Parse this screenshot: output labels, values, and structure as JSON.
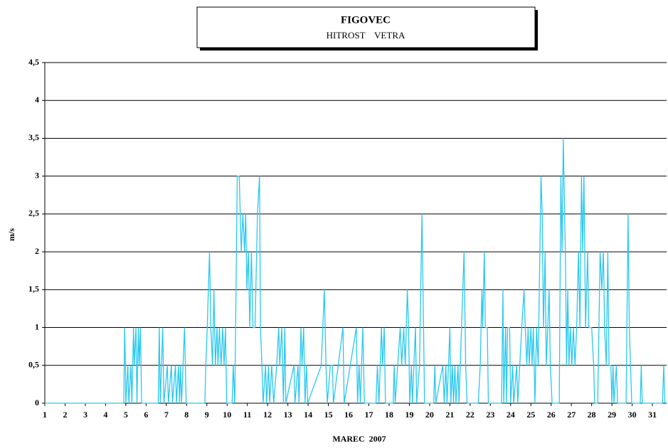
{
  "chart_data": {
    "type": "line",
    "title": "FIGOVEC",
    "subtitle": "HITROST    VETRA",
    "xlabel": "MAREC  2007",
    "ylabel": "m/s",
    "grid": true,
    "xlim": [
      1,
      31.7
    ],
    "ylim": [
      0,
      4.5
    ],
    "xticks": [
      1,
      2,
      3,
      4,
      5,
      6,
      7,
      8,
      9,
      10,
      11,
      12,
      13,
      14,
      15,
      16,
      17,
      18,
      19,
      20,
      21,
      22,
      23,
      24,
      25,
      26,
      27,
      28,
      29,
      30,
      31
    ],
    "yticks": [
      0,
      {
        "value": 0.5,
        "label": "0,5"
      },
      1,
      {
        "value": 1.5,
        "label": "1,5"
      },
      2,
      {
        "value": 2.5,
        "label": "2,5"
      },
      3,
      {
        "value": 3.5,
        "label": "3,5"
      },
      4,
      {
        "value": 4.5,
        "label": "4,5"
      }
    ],
    "series": [
      {
        "color": "#29c8f0",
        "x": [
          1,
          4.9,
          4.94,
          4.98,
          5.0,
          5.1,
          5.15,
          5.25,
          5.3,
          5.38,
          5.42,
          5.5,
          5.55,
          5.62,
          5.66,
          5.72,
          5.78,
          6.6,
          6.65,
          6.7,
          6.82,
          6.88,
          7.05,
          7.1,
          7.25,
          7.3,
          7.45,
          7.5,
          7.6,
          7.65,
          7.7,
          7.75,
          7.9,
          7.98,
          8.9,
          8.95,
          9.02,
          9.13,
          9.2,
          9.28,
          9.35,
          9.42,
          9.5,
          9.55,
          9.62,
          9.7,
          9.78,
          9.85,
          9.92,
          9.98,
          10.25,
          10.3,
          10.38,
          10.5,
          10.6,
          10.7,
          10.78,
          10.86,
          10.92,
          10.98,
          11.05,
          11.12,
          11.2,
          11.28,
          11.38,
          11.5,
          11.6,
          11.65,
          11.72,
          11.78,
          11.9,
          11.95,
          12.05,
          12.1,
          12.2,
          12.3,
          12.45,
          12.55,
          12.6,
          12.7,
          12.78,
          12.85,
          12.9,
          13.3,
          13.35,
          13.5,
          13.55,
          13.65,
          13.7,
          13.78,
          13.85,
          13.92,
          13.98,
          14.65,
          14.8,
          14.88,
          14.95,
          15.1,
          15.2,
          15.25,
          15.72,
          15.78,
          16.38,
          16.44,
          16.52,
          16.58,
          16.7,
          16.78,
          17.35,
          17.42,
          17.5,
          17.62,
          17.68,
          17.76,
          17.82,
          18.2,
          18.25,
          18.3,
          18.55,
          18.62,
          18.72,
          18.8,
          18.9,
          18.96,
          19.02,
          19.1,
          19.15,
          19.3,
          19.36,
          19.5,
          19.62,
          19.7,
          19.75,
          20.2,
          20.26,
          20.3,
          20.65,
          20.72,
          20.8,
          20.86,
          21.0,
          21.05,
          21.12,
          21.18,
          21.25,
          21.3,
          21.4,
          21.45,
          21.7,
          21.78,
          21.85,
          22.4,
          22.5,
          22.58,
          22.62,
          22.7,
          22.75,
          22.85,
          22.9,
          23.55,
          23.62,
          23.66,
          23.75,
          23.8,
          23.85,
          23.95,
          24.0,
          24.1,
          24.15,
          24.3,
          24.35,
          24.55,
          24.66,
          24.72,
          24.8,
          24.86,
          24.92,
          25.0,
          25.06,
          25.12,
          25.2,
          25.28,
          25.36,
          25.5,
          25.56,
          25.62,
          25.7,
          25.76,
          25.9,
          25.96,
          26.05,
          26.4,
          26.48,
          26.54,
          26.6,
          26.7,
          26.76,
          26.82,
          26.88,
          26.95,
          27.02,
          27.1,
          27.18,
          27.26,
          27.35,
          27.42,
          27.5,
          27.56,
          27.62,
          27.7,
          27.8,
          27.86,
          28.0,
          28.1,
          28.15,
          28.3,
          28.42,
          28.5,
          28.58,
          28.64,
          28.72,
          28.8,
          28.86,
          28.95,
          29.0,
          29.06,
          29.1,
          29.22,
          29.28,
          29.7,
          29.8,
          29.86,
          29.92,
          29.98,
          30.4,
          30.45,
          30.5,
          31.5,
          31.56,
          31.62
        ],
        "values": [
          0,
          0,
          1,
          0.5,
          0,
          0.5,
          0,
          0.5,
          0,
          1,
          0.5,
          1,
          0,
          1,
          0.5,
          1,
          0,
          0,
          1,
          0,
          1,
          0,
          0.5,
          0,
          0.5,
          0,
          0.5,
          0,
          0.5,
          0,
          0.5,
          0,
          1,
          0,
          0,
          0.5,
          1,
          2,
          1,
          0.5,
          1.5,
          0.5,
          1,
          0.5,
          1,
          0.5,
          1,
          0.5,
          1,
          0,
          0,
          0.5,
          0,
          3,
          3,
          2,
          2.5,
          2,
          2.5,
          1.5,
          2,
          1,
          2,
          1,
          1,
          2.5,
          3,
          1,
          0.5,
          0,
          0.5,
          0,
          0.5,
          0,
          0.5,
          0,
          0.5,
          1,
          0.5,
          1,
          0,
          1,
          0,
          0.5,
          0,
          0.5,
          0,
          1,
          0.5,
          1,
          0,
          0.5,
          0,
          0.5,
          1.5,
          0.5,
          0,
          0.5,
          0.5,
          0,
          1,
          0,
          1,
          0,
          0.5,
          0,
          1,
          0,
          0,
          0.5,
          0,
          1,
          0.5,
          1,
          0,
          0,
          0.5,
          0,
          1,
          0.5,
          1,
          0.5,
          1.5,
          1,
          0,
          0.5,
          0,
          1,
          0,
          0.5,
          2.5,
          1,
          0,
          0,
          0.5,
          0,
          0.5,
          0,
          0.5,
          0,
          1,
          0,
          0.5,
          0,
          0.5,
          0,
          0.5,
          0,
          2,
          0.5,
          0,
          0,
          0.5,
          1.5,
          1,
          2,
          1,
          1,
          0,
          0,
          1.5,
          0,
          1,
          0,
          1,
          1,
          0,
          0.5,
          0,
          0.5,
          0,
          1,
          1.5,
          1,
          0.5,
          1,
          0.5,
          1,
          0.5,
          1,
          0,
          1,
          0.5,
          3,
          2.5,
          1,
          2,
          0.5,
          1.5,
          0.5,
          0,
          0,
          3,
          2,
          3.5,
          2,
          0.5,
          1.5,
          0.5,
          1,
          0.5,
          1,
          0.5,
          1,
          2,
          1,
          3,
          2,
          3,
          1,
          2,
          1,
          1,
          0.5,
          0,
          0,
          2,
          1.5,
          2,
          1,
          0.5,
          2,
          0.5,
          0.5,
          0,
          0.5,
          0,
          0.5,
          0,
          0,
          2.5,
          1,
          0.5,
          0,
          0,
          0.5,
          0,
          0,
          0.5,
          0
        ]
      }
    ]
  }
}
